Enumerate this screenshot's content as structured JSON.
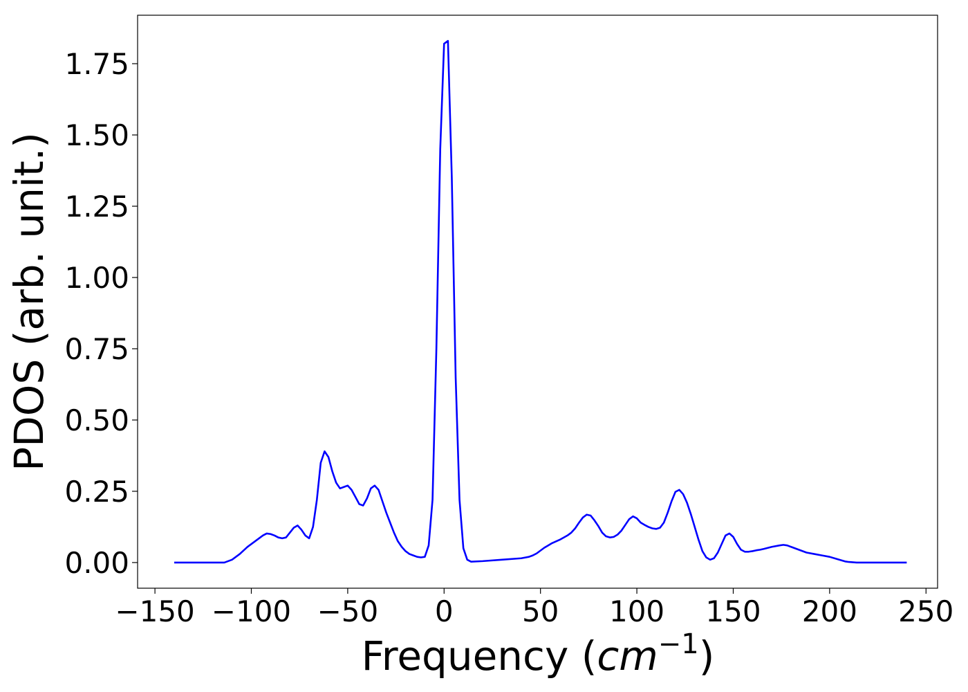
{
  "chart_data": {
    "type": "line",
    "title": "",
    "xlabel": "Frequency (",
    "xlabel_unit": "cm",
    "xlabel_exponent": "−1",
    "xlabel_close": ")",
    "ylabel": "PDOS (arb. unit.)",
    "xlim": [
      -159,
      256
    ],
    "ylim": [
      -0.09,
      1.92
    ],
    "xticks": [
      -150,
      -100,
      -50,
      0,
      50,
      100,
      150,
      200,
      250
    ],
    "xtick_labels": [
      "−150",
      "−100",
      "−50",
      "0",
      "50",
      "100",
      "150",
      "200",
      "250"
    ],
    "yticks": [
      0.0,
      0.25,
      0.5,
      0.75,
      1.0,
      1.25,
      1.5,
      1.75
    ],
    "ytick_labels": [
      "0.00",
      "0.25",
      "0.50",
      "0.75",
      "1.00",
      "1.25",
      "1.50",
      "1.75"
    ],
    "grid": false,
    "series": [
      {
        "color": "#0000ff",
        "x": [
          -140,
          -130,
          -120,
          -114,
          -110,
          -106,
          -102,
          -98,
          -94,
          -92,
          -90,
          -88,
          -86,
          -84,
          -82,
          -80,
          -78,
          -76,
          -74,
          -72,
          -70,
          -68,
          -66,
          -64,
          -62,
          -60,
          -58,
          -56,
          -54,
          -52,
          -50,
          -48,
          -46,
          -44,
          -42,
          -40,
          -38,
          -36,
          -34,
          -32,
          -30,
          -28,
          -26,
          -24,
          -22,
          -20,
          -18,
          -16,
          -14,
          -12,
          -10,
          -8,
          -6,
          -4,
          -2,
          0,
          2,
          4,
          6,
          8,
          10,
          12,
          14,
          20,
          30,
          40,
          44,
          46,
          48,
          50,
          52,
          54,
          56,
          60,
          64,
          66,
          68,
          70,
          72,
          74,
          76,
          78,
          80,
          82,
          84,
          86,
          88,
          90,
          92,
          94,
          96,
          98,
          100,
          102,
          104,
          106,
          108,
          110,
          112,
          114,
          116,
          118,
          120,
          122,
          124,
          126,
          128,
          130,
          132,
          134,
          136,
          138,
          140,
          142,
          144,
          146,
          148,
          150,
          152,
          154,
          156,
          158,
          160,
          162,
          164,
          166,
          170,
          174,
          176,
          178,
          180,
          184,
          188,
          192,
          196,
          200,
          204,
          206,
          208,
          210,
          214,
          220,
          230,
          240
        ],
        "y": [
          0.0,
          0.0,
          0.0,
          0.0,
          0.01,
          0.03,
          0.055,
          0.075,
          0.095,
          0.102,
          0.1,
          0.095,
          0.088,
          0.085,
          0.088,
          0.105,
          0.122,
          0.13,
          0.115,
          0.095,
          0.085,
          0.125,
          0.22,
          0.35,
          0.39,
          0.37,
          0.32,
          0.28,
          0.26,
          0.265,
          0.27,
          0.255,
          0.23,
          0.205,
          0.2,
          0.225,
          0.26,
          0.27,
          0.255,
          0.215,
          0.175,
          0.14,
          0.105,
          0.075,
          0.055,
          0.04,
          0.03,
          0.025,
          0.02,
          0.018,
          0.02,
          0.06,
          0.22,
          0.75,
          1.45,
          1.82,
          1.83,
          1.35,
          0.65,
          0.22,
          0.05,
          0.01,
          0.003,
          0.005,
          0.01,
          0.015,
          0.02,
          0.025,
          0.032,
          0.042,
          0.052,
          0.06,
          0.068,
          0.08,
          0.095,
          0.105,
          0.12,
          0.14,
          0.158,
          0.168,
          0.165,
          0.148,
          0.128,
          0.105,
          0.092,
          0.088,
          0.09,
          0.098,
          0.112,
          0.132,
          0.152,
          0.162,
          0.155,
          0.14,
          0.132,
          0.125,
          0.12,
          0.118,
          0.122,
          0.14,
          0.175,
          0.215,
          0.248,
          0.255,
          0.24,
          0.21,
          0.17,
          0.125,
          0.08,
          0.04,
          0.018,
          0.01,
          0.015,
          0.035,
          0.065,
          0.095,
          0.102,
          0.09,
          0.065,
          0.045,
          0.038,
          0.038,
          0.04,
          0.043,
          0.045,
          0.048,
          0.055,
          0.06,
          0.062,
          0.06,
          0.055,
          0.045,
          0.035,
          0.03,
          0.025,
          0.02,
          0.012,
          0.008,
          0.004,
          0.002,
          0.0,
          0.0,
          0.0,
          0.0
        ]
      }
    ]
  }
}
